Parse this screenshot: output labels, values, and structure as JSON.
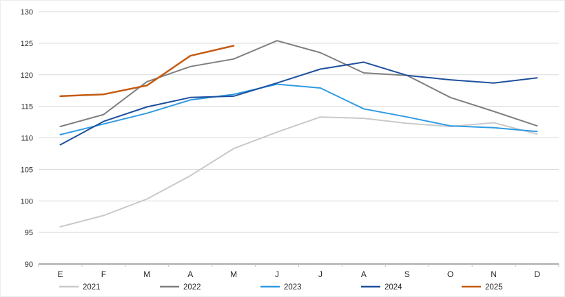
{
  "chart_data": {
    "type": "line",
    "title": "",
    "xlabel": "",
    "ylabel": "",
    "x_labels": [
      "E",
      "F",
      "M",
      "A",
      "M",
      "J",
      "J",
      "A",
      "S",
      "O",
      "N",
      "D"
    ],
    "y_ticks": [
      90,
      95,
      100,
      105,
      110,
      115,
      120,
      125,
      130
    ],
    "ylim": [
      90,
      130
    ],
    "grid": "horizontal",
    "legend_position": "bottom",
    "axis_color": "#595959",
    "gridline_color": "#d9d9d9",
    "label_color": "#262626",
    "series": [
      {
        "name": "2021",
        "color": "#c9c9c9",
        "width": 2,
        "values": [
          95.9,
          97.7,
          100.3,
          104.0,
          108.3,
          110.9,
          113.3,
          113.1,
          112.3,
          111.8,
          112.4,
          110.6
        ]
      },
      {
        "name": "2022",
        "color": "#7f7f7f",
        "width": 2,
        "values": [
          111.8,
          113.7,
          118.9,
          121.3,
          122.5,
          125.4,
          123.5,
          120.3,
          119.9,
          116.4,
          114.2,
          111.9
        ]
      },
      {
        "name": "2023",
        "color": "#2f9be3",
        "width": 2,
        "values": [
          110.5,
          112.2,
          113.9,
          116.0,
          116.9,
          118.5,
          117.9,
          114.6,
          113.3,
          111.9,
          111.6,
          111.0
        ]
      },
      {
        "name": "2024",
        "color": "#1d4f9e",
        "width": 2,
        "values": [
          108.9,
          112.6,
          114.9,
          116.4,
          116.6,
          118.7,
          120.9,
          122.0,
          119.9,
          119.2,
          118.7,
          119.5
        ]
      },
      {
        "name": "2025",
        "color": "#c55a11",
        "width": 2.5,
        "values": [
          116.6,
          116.9,
          118.3,
          123.0,
          124.6,
          null,
          null,
          null,
          null,
          null,
          null,
          null
        ]
      }
    ]
  }
}
